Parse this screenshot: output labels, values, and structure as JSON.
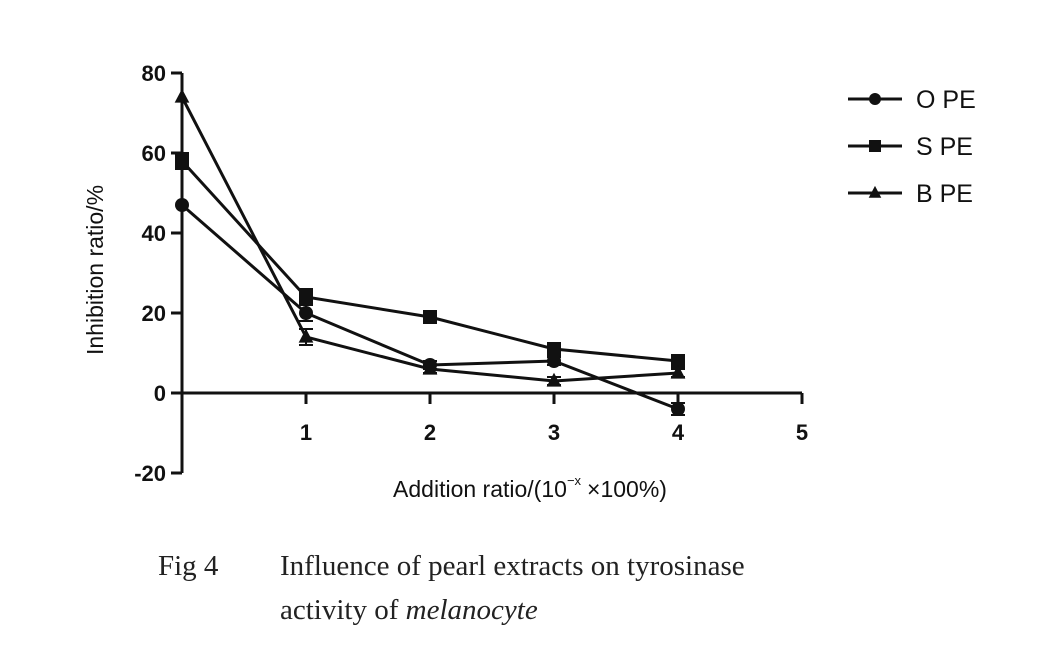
{
  "chart_data": {
    "type": "line",
    "x": [
      0,
      1,
      2,
      3,
      4
    ],
    "xticks": [
      "1",
      "2",
      "3",
      "4",
      "5"
    ],
    "yticks": [
      "80",
      "60",
      "40",
      "20",
      "0",
      "-20"
    ],
    "xlim": [
      0,
      5
    ],
    "ylim": [
      -20,
      80
    ],
    "xlabel_main": "Addition ratio/(10",
    "xlabel_sup": "−x",
    "xlabel_tail": "×100%)",
    "ylabel": "Inhibition ratio/%",
    "legend_position": "top-right",
    "grid": false,
    "series": [
      {
        "name": "O PE",
        "marker": "circle",
        "values": [
          47,
          20,
          7,
          8,
          -4
        ],
        "errors": [
          0,
          2,
          1,
          1,
          1.5
        ]
      },
      {
        "name": "S PE",
        "marker": "square",
        "values": [
          58,
          24,
          19,
          11,
          8
        ],
        "errors": [
          2,
          2,
          1,
          1,
          1
        ]
      },
      {
        "name": "B PE",
        "marker": "triangle",
        "values": [
          74,
          14,
          6,
          3,
          5
        ],
        "errors": [
          0,
          2,
          1,
          1,
          1
        ]
      }
    ]
  },
  "caption": {
    "fig_label": "Fig 4",
    "line1": "Influence of pearl extracts on tyrosinase",
    "line2_plain": "activity of ",
    "line2_italic": "melanocyte"
  }
}
